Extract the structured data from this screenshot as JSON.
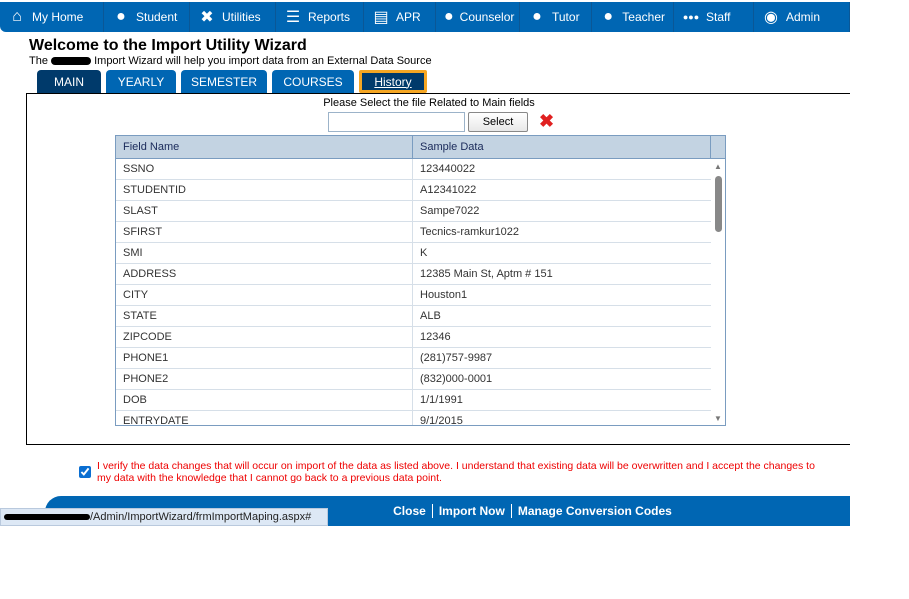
{
  "nav": [
    {
      "label": "My Home",
      "icon": "home-icon"
    },
    {
      "label": "Student",
      "icon": "student-icon"
    },
    {
      "label": "Utilities",
      "icon": "tools-icon"
    },
    {
      "label": "Reports",
      "icon": "list-icon"
    },
    {
      "label": "APR",
      "icon": "document-icon"
    },
    {
      "label": "Counselor",
      "icon": "person-icon"
    },
    {
      "label": "Tutor",
      "icon": "tutor-icon"
    },
    {
      "label": "Teacher",
      "icon": "teacher-icon"
    },
    {
      "label": "Staff",
      "icon": "group-icon"
    },
    {
      "label": "Admin",
      "icon": "user-circle-icon"
    }
  ],
  "title": "Welcome to the Import Utility Wizard",
  "subtitle_pre": "The",
  "subtitle_post": "Import Wizard will help you import data from an External Data Source",
  "tabs": [
    "MAIN",
    "YEARLY",
    "SEMESTER",
    "COURSES",
    "History"
  ],
  "file_label": "Please Select the file Related to Main fields",
  "file_value": "",
  "select_label": "Select",
  "grid": {
    "headers": [
      "Field Name",
      "Sample Data"
    ],
    "rows": [
      [
        "SSNO",
        "123440022"
      ],
      [
        "STUDENTID",
        "A12341022"
      ],
      [
        "SLAST",
        "Sampe7022"
      ],
      [
        "SFIRST",
        "Tecnics-ramkur1022"
      ],
      [
        "SMI",
        "K"
      ],
      [
        "ADDRESS",
        "12385 Main St, Aptm # 151"
      ],
      [
        "CITY",
        "Houston1"
      ],
      [
        "STATE",
        "ALB"
      ],
      [
        "ZIPCODE",
        "12346"
      ],
      [
        "PHONE1",
        "(281)757-9987"
      ],
      [
        "PHONE2",
        "(832)000-0001"
      ],
      [
        "DOB",
        "1/1/1991"
      ],
      [
        "ENTRYDATE",
        "9/1/2015"
      ]
    ]
  },
  "verify_checked": true,
  "verify_text": "I verify the data changes that will occur on import of the data as listed above. I understand that existing data will be overwritten and I accept the changes to my data with the knowledge that I cannot go back to a previous data point.",
  "footer": {
    "close": "Close",
    "import": "Import Now",
    "manage": "Manage Conversion Codes"
  },
  "status_url": "/Admin/ImportWizard/frmImportMaping.aspx#",
  "colors": {
    "nav": "#0066b3",
    "tab_active": "#003a6b",
    "highlight": "#f5a623",
    "warning": "#e00000"
  }
}
